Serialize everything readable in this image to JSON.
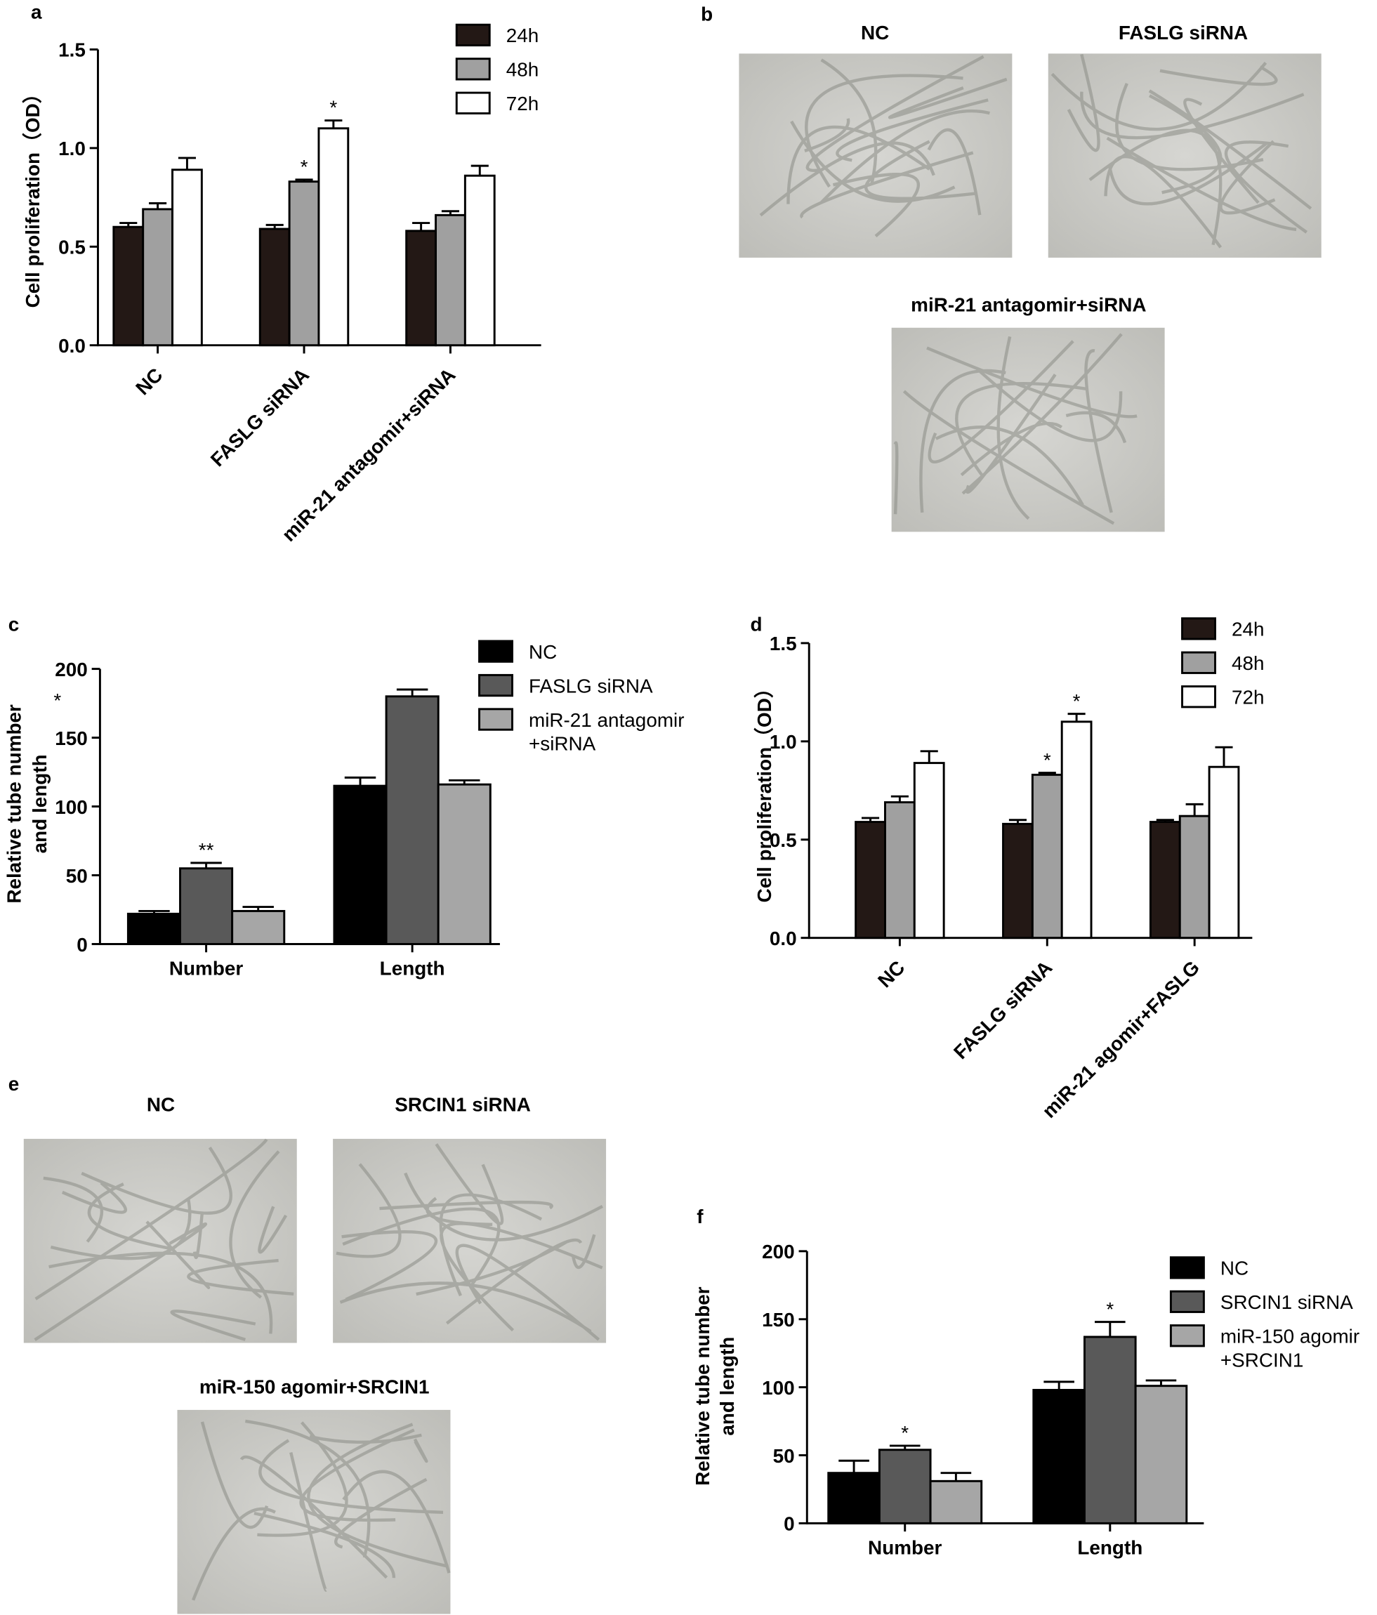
{
  "chart_data": [
    {
      "type": "bar",
      "panel": "a",
      "ylabel": [
        "Cell proliferation（OD）"
      ],
      "categories": [
        "NC",
        "FASLG siRNA",
        "miR-21 antagomir+siRNA"
      ],
      "series": [
        {
          "name": "24h",
          "color": "#231815",
          "values": [
            0.6,
            0.59,
            0.58
          ],
          "errors": [
            0.02,
            0.02,
            0.04
          ],
          "stars": [
            null,
            null,
            null
          ]
        },
        {
          "name": "48h",
          "color": "#a0a0a0",
          "values": [
            0.69,
            0.83,
            0.66
          ],
          "errors": [
            0.03,
            0.01,
            0.02
          ],
          "stars": [
            null,
            "*",
            null
          ]
        },
        {
          "name": "72h",
          "color": "#ffffff",
          "values": [
            0.89,
            1.1,
            0.86
          ],
          "errors": [
            0.06,
            0.04,
            0.05
          ],
          "stars": [
            null,
            "*",
            null
          ]
        }
      ],
      "ylim": [
        0,
        1.5
      ],
      "yticks": [
        {
          "value": 0,
          "label": "0.0"
        },
        0.5,
        {
          "value": 1,
          "label": "1.0"
        },
        1.5
      ]
    },
    {
      "type": "bar",
      "panel": "c",
      "ylabel": [
        "Relative tube number",
        "and length"
      ],
      "note": "*",
      "categories": [
        "Number",
        "Length"
      ],
      "series": [
        {
          "name": "NC",
          "color": "#000000",
          "values": [
            22,
            115
          ],
          "errors": [
            2,
            6
          ],
          "stars": [
            null,
            null
          ]
        },
        {
          "name": "FASLG siRNA",
          "color": "#595959",
          "values": [
            55,
            180
          ],
          "errors": [
            4,
            5
          ],
          "stars": [
            "**",
            null
          ]
        },
        {
          "name": "miR-21 antagomir\n+siRNA",
          "color": "#a6a6a6",
          "values": [
            24,
            116
          ],
          "errors": [
            3,
            3
          ],
          "stars": [
            null,
            null
          ]
        }
      ],
      "ylim": [
        0,
        200
      ],
      "yticks": [
        0,
        50,
        100,
        150,
        200
      ]
    },
    {
      "type": "bar",
      "panel": "d",
      "ylabel": [
        "Cell proliferation（OD）"
      ],
      "categories": [
        "NC",
        "FASLG siRNA",
        "miR-21 agomir+FASLG"
      ],
      "series": [
        {
          "name": "24h",
          "color": "#231815",
          "values": [
            0.59,
            0.58,
            0.59
          ],
          "errors": [
            0.02,
            0.02,
            0.01
          ],
          "stars": [
            null,
            null,
            null
          ]
        },
        {
          "name": "48h",
          "color": "#a0a0a0",
          "values": [
            0.69,
            0.83,
            0.62
          ],
          "errors": [
            0.03,
            0.01,
            0.06
          ],
          "stars": [
            null,
            "*",
            null
          ]
        },
        {
          "name": "72h",
          "color": "#ffffff",
          "values": [
            0.89,
            1.1,
            0.87
          ],
          "errors": [
            0.06,
            0.04,
            0.1
          ],
          "stars": [
            null,
            "*",
            null
          ]
        }
      ],
      "ylim": [
        0,
        1.5
      ],
      "yticks": [
        {
          "value": 0,
          "label": "0.0"
        },
        0.5,
        {
          "value": 1,
          "label": "1.0"
        },
        1.5
      ]
    },
    {
      "type": "bar",
      "panel": "f",
      "ylabel": [
        "Relative tube number",
        "and length"
      ],
      "categories": [
        "Number",
        "Length"
      ],
      "series": [
        {
          "name": "NC",
          "color": "#000000",
          "values": [
            37,
            98
          ],
          "errors": [
            9,
            6
          ],
          "stars": [
            null,
            null
          ]
        },
        {
          "name": "SRCIN1 siRNA",
          "color": "#595959",
          "values": [
            54,
            137
          ],
          "errors": [
            3,
            11
          ],
          "stars": [
            "*",
            "*"
          ]
        },
        {
          "name": "miR-150 agomir\n+SRCIN1",
          "color": "#a6a6a6",
          "values": [
            31,
            101
          ],
          "errors": [
            6,
            4
          ],
          "stars": [
            null,
            null
          ]
        }
      ],
      "ylim": [
        0,
        200
      ],
      "yticks": [
        0,
        50,
        100,
        150,
        200
      ]
    }
  ],
  "images": [
    {
      "panel": "b",
      "captions": [
        "NC",
        "FASLG siRNA",
        "miR-21 antagomir+siRNA"
      ]
    },
    {
      "panel": "e",
      "captions": [
        "NC",
        "SRCIN1 siRNA",
        "miR-150 agomir+SRCIN1"
      ]
    }
  ]
}
